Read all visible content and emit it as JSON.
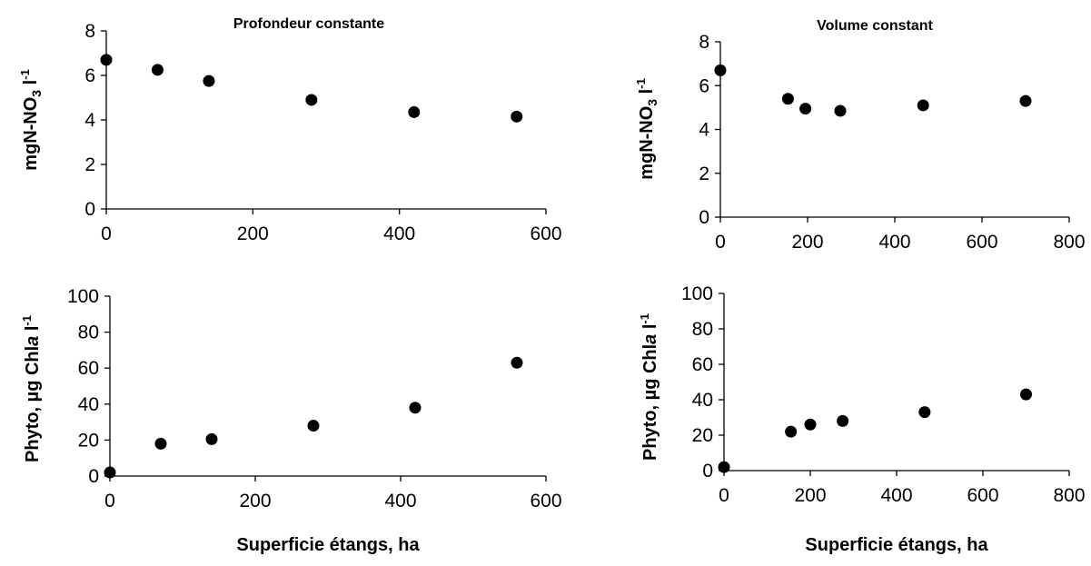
{
  "chart_data": [
    {
      "type": "scatter",
      "title": "Profondeur constante",
      "xlabel": "",
      "ylabel": "mgN-NO3 l-1",
      "ylabel_parts": {
        "main": "mgN-NO",
        "sub": "3",
        "unit": " l",
        "sup": "-1"
      },
      "xlim": [
        0,
        600
      ],
      "ylim": [
        0,
        8
      ],
      "xticks": [
        0,
        200,
        400,
        600
      ],
      "yticks": [
        0,
        2,
        4,
        6,
        8
      ],
      "series": [
        {
          "x": [
            0,
            70,
            140,
            280,
            420,
            560
          ],
          "y": [
            6.7,
            6.25,
            5.75,
            4.9,
            4.35,
            4.15
          ]
        }
      ]
    },
    {
      "type": "scatter",
      "title": "Volume constant",
      "xlabel": "",
      "ylabel": "mgN-NO3 l-1",
      "ylabel_parts": {
        "main": "mgN-NO",
        "sub": "3",
        "unit": " l",
        "sup": "-1"
      },
      "xlim": [
        0,
        800
      ],
      "ylim": [
        0,
        8
      ],
      "xticks": [
        0,
        200,
        400,
        600,
        800
      ],
      "yticks": [
        0,
        2,
        4,
        6,
        8
      ],
      "series": [
        {
          "x": [
            0,
            155,
            195,
            275,
            465,
            700
          ],
          "y": [
            6.7,
            5.4,
            4.95,
            4.85,
            5.1,
            5.3
          ]
        }
      ]
    },
    {
      "type": "scatter",
      "title": "",
      "xlabel": "Superficie étangs, ha",
      "ylabel": "Phyto, µg Chla l-1",
      "ylabel_parts": {
        "main": "Phyto, µg Chl",
        "italic": "a",
        "unit": " l",
        "sup": "-1"
      },
      "xlim": [
        0,
        600
      ],
      "ylim": [
        0,
        100
      ],
      "xticks": [
        0,
        200,
        400,
        600
      ],
      "yticks": [
        0,
        20,
        40,
        60,
        80,
        100
      ],
      "series": [
        {
          "x": [
            0,
            70,
            140,
            280,
            420,
            560
          ],
          "y": [
            2,
            18,
            20.5,
            28,
            38,
            63
          ]
        }
      ]
    },
    {
      "type": "scatter",
      "title": "",
      "xlabel": "Superficie étangs, ha",
      "ylabel": "Phyto, µg Chla l-1",
      "ylabel_parts": {
        "main": "Phyto, µg Chl",
        "italic": "a",
        "unit": " l",
        "sup": "-1"
      },
      "xlim": [
        0,
        800
      ],
      "ylim": [
        0,
        100
      ],
      "xticks": [
        0,
        200,
        400,
        600,
        800
      ],
      "yticks": [
        0,
        20,
        40,
        60,
        80,
        100
      ],
      "series": [
        {
          "x": [
            0,
            155,
            200,
            275,
            465,
            700
          ],
          "y": [
            2,
            22,
            26,
            28,
            33,
            43
          ]
        }
      ]
    }
  ]
}
